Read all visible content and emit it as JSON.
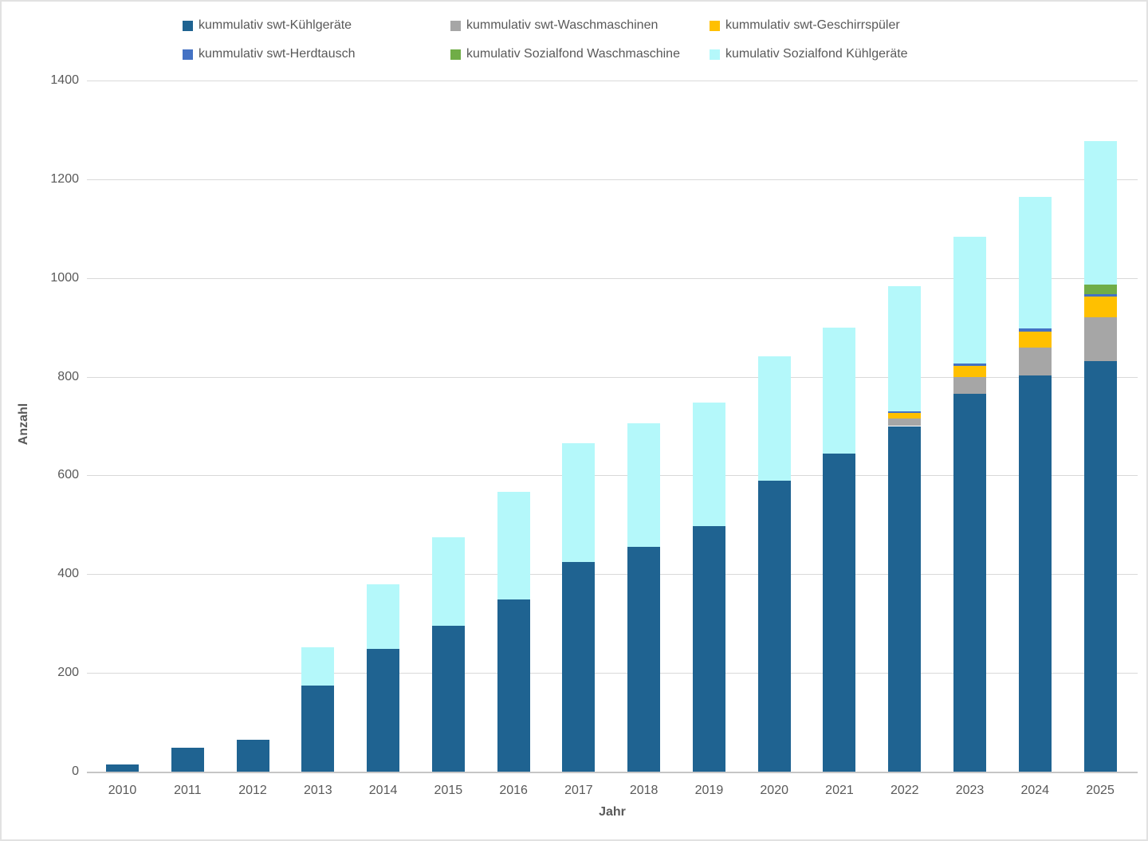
{
  "chart_data": {
    "type": "bar",
    "stacked": true,
    "xlabel": "Jahr",
    "ylabel": "Anzahl",
    "ylim": [
      0,
      1400
    ],
    "ytick_step": 200,
    "grid": true,
    "legend_position": "top",
    "categories": [
      "2010",
      "2011",
      "2012",
      "2013",
      "2014",
      "2015",
      "2016",
      "2017",
      "2018",
      "2019",
      "2020",
      "2021",
      "2022",
      "2023",
      "2024",
      "2025"
    ],
    "series": [
      {
        "key": "kuehlgeraete",
        "name": "kummulativ swt-Kühlgeräte",
        "color": "#1F6391",
        "values": [
          15,
          48,
          65,
          175,
          248,
          295,
          348,
          424,
          455,
          497,
          589,
          645,
          700,
          765,
          802,
          832
        ]
      },
      {
        "key": "waschmaschinen",
        "name": "kummulativ swt-Waschmaschinen",
        "color": "#A6A6A6",
        "values": [
          0,
          0,
          0,
          0,
          0,
          0,
          0,
          0,
          0,
          0,
          0,
          0,
          15,
          35,
          57,
          88
        ]
      },
      {
        "key": "geschirrspueler",
        "name": "kummulativ swt-Geschirrspüler",
        "color": "#FFC000",
        "values": [
          0,
          0,
          0,
          0,
          0,
          0,
          0,
          0,
          0,
          0,
          0,
          0,
          11,
          22,
          33,
          43
        ]
      },
      {
        "key": "herdtausch",
        "name": "kummulativ swt-Herdtausch",
        "color": "#4472C4",
        "values": [
          0,
          0,
          0,
          0,
          0,
          0,
          0,
          0,
          0,
          0,
          0,
          0,
          4,
          4,
          6,
          5
        ]
      },
      {
        "key": "sozialfond-waschmaschine",
        "name": "kumulativ Sozialfond Waschmaschine",
        "color": "#70AD47",
        "values": [
          0,
          0,
          0,
          0,
          0,
          0,
          0,
          0,
          0,
          0,
          0,
          0,
          0,
          0,
          0,
          19
        ]
      },
      {
        "key": "sozialfond-kuehlgeraete",
        "name": "kumulativ Sozialfond Kühlgeräte",
        "color": "#B4F8FA",
        "values": [
          0,
          0,
          0,
          77,
          132,
          180,
          218,
          241,
          250,
          250,
          252,
          255,
          253,
          257,
          267,
          290
        ]
      }
    ]
  },
  "style_colors": {
    "gridline": "#d9d9d9",
    "axis_line": "#c6c6c6",
    "tick_text": "#595959"
  }
}
